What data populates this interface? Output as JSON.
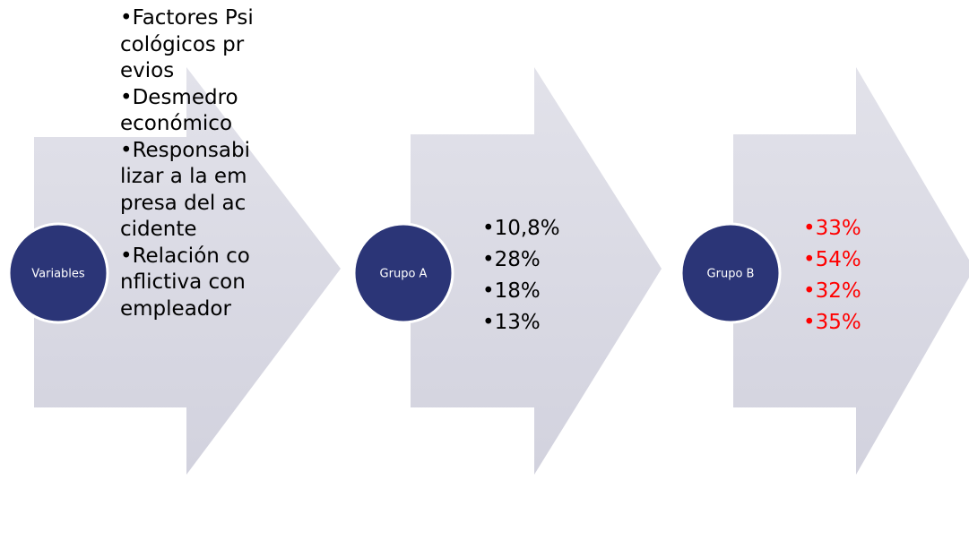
{
  "nodes": [
    {
      "label": "Variables",
      "items": [
        "Factores Psicológicos previos",
        "Desmedro económico",
        "Responsabilizar a  la empresa del accidente",
        "Relación conflictiva  con empleador"
      ]
    },
    {
      "label": "Grupo A",
      "items": [
        "10,8%",
        "28%",
        "18%",
        "13%"
      ]
    },
    {
      "label": "Grupo B",
      "items": [
        "33%",
        "54%",
        "32%",
        "35%"
      ]
    }
  ]
}
